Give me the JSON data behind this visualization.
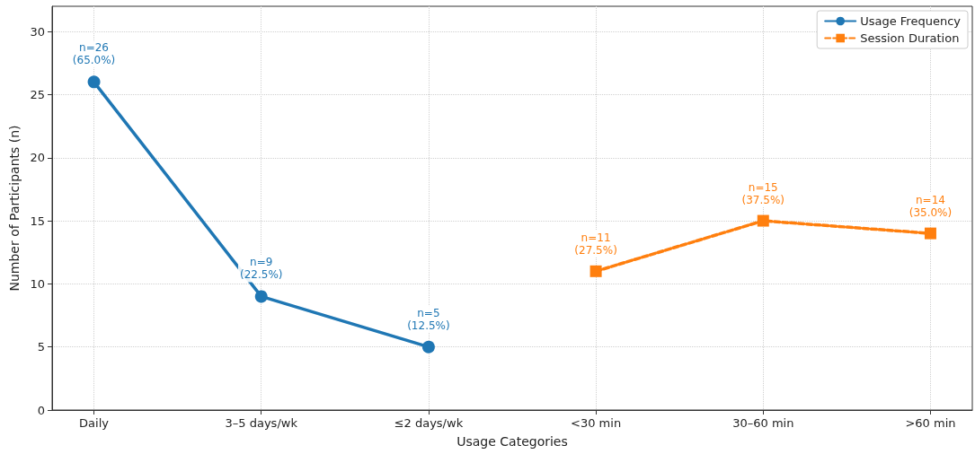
{
  "chart_data": {
    "type": "line",
    "xlabel": "Usage Categories",
    "ylabel": "Number of Participants (n)",
    "categories": [
      "Daily",
      "3–5 days/wk",
      "≤2 days/wk",
      "<30 min",
      "30–60 min",
      ">60 min"
    ],
    "series": [
      {
        "name": "Usage Frequency",
        "color": "#1f77b4",
        "marker": "circle",
        "line_style": "solid",
        "values": [
          26,
          9,
          5,
          null,
          null,
          null
        ],
        "value_labels": [
          "n=26\n(65.0%)",
          "n=9\n(22.5%)",
          "n=5\n(12.5%)",
          null,
          null,
          null
        ]
      },
      {
        "name": "Session Duration",
        "color": "#ff7f0e",
        "marker": "square",
        "line_style": "dashed",
        "values": [
          null,
          null,
          null,
          11,
          15,
          14
        ],
        "value_labels": [
          null,
          null,
          null,
          "n=11\n(27.5%)",
          "n=15\n(37.5%)",
          "n=14\n(35.0%)"
        ]
      }
    ],
    "ylim": [
      0,
      32
    ],
    "yticks": [
      0,
      5,
      10,
      15,
      20,
      25,
      30
    ],
    "grid": true,
    "legend": "top right"
  }
}
